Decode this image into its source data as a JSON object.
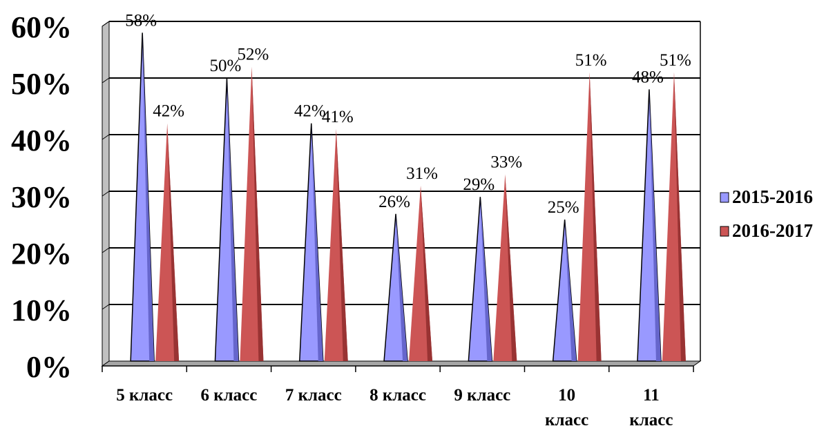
{
  "chart_data": {
    "type": "bar",
    "categories": [
      [
        "5 класс"
      ],
      [
        "6 класс"
      ],
      [
        "7 класс"
      ],
      [
        "8 класс"
      ],
      [
        "9 класс"
      ],
      [
        "10",
        "класс"
      ],
      [
        "11",
        "класс"
      ]
    ],
    "series": [
      {
        "name": "2015-2016",
        "values": [
          58,
          50,
          42,
          26,
          29,
          25,
          48
        ],
        "labels": [
          "58%",
          "50%",
          "42%",
          "26%",
          "29%",
          "25%",
          "48%"
        ],
        "color": "#9999ff",
        "shade": "#6666cc"
      },
      {
        "name": "2016-2017",
        "values": [
          42,
          52,
          41,
          31,
          33,
          51,
          51
        ],
        "labels": [
          "42%",
          "52%",
          "41%",
          "31%",
          "33%",
          "51%",
          "51%"
        ],
        "color": "#cc5555",
        "shade": "#993333"
      }
    ],
    "y_ticks": [
      "0%",
      "10%",
      "20%",
      "30%",
      "40%",
      "50%",
      "60%"
    ],
    "ylim": [
      0,
      60
    ],
    "bar_shape": "cone",
    "grid": true,
    "legend_position": "right",
    "title": "",
    "xlabel": "",
    "ylabel": ""
  }
}
